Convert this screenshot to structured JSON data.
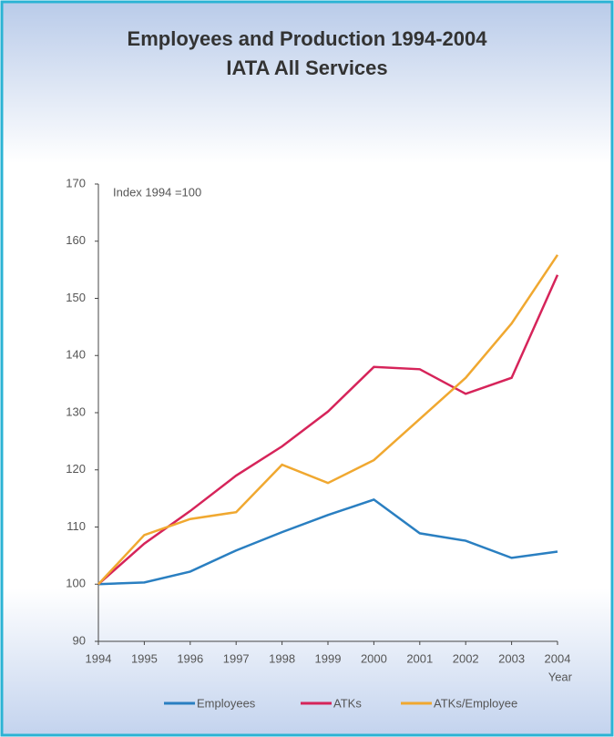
{
  "chart_data": {
    "type": "line",
    "title": "Employees and Production 1994-2004",
    "subtitle": "IATA All Services",
    "annotation": "Index 1994 =100",
    "x_label": "Year",
    "categories": [
      "1994",
      "1995",
      "1996",
      "1997",
      "1998",
      "1999",
      "2000",
      "2001",
      "2002",
      "2003",
      "2004"
    ],
    "series": [
      {
        "name": "Employees",
        "color": "#2a7fc1",
        "values": [
          100,
          100.3,
          102.2,
          105.9,
          109.1,
          112.1,
          114.8,
          108.9,
          107.6,
          104.6,
          105.7
        ]
      },
      {
        "name": "ATKs",
        "color": "#d6245a",
        "values": [
          100,
          107.1,
          112.8,
          119,
          124.1,
          130.2,
          138,
          137.6,
          133.3,
          136.1,
          154.1
        ]
      },
      {
        "name": "ATKs/Employee",
        "color": "#f0a830",
        "values": [
          100,
          108.6,
          111.4,
          112.6,
          120.9,
          117.7,
          121.7,
          128.9,
          136.1,
          145.6,
          157.6
        ]
      }
    ],
    "ylim": [
      90,
      170
    ],
    "yticks": [
      90,
      100,
      110,
      120,
      130,
      140,
      150,
      160,
      170
    ],
    "legend": "bottom"
  }
}
